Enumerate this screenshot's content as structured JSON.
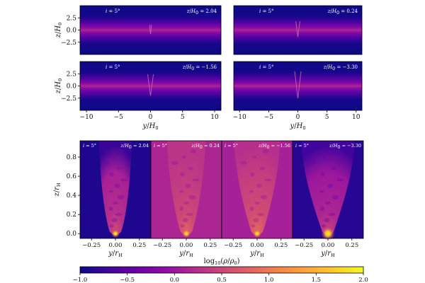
{
  "chart_data": {
    "type": "heatmap",
    "colormap": {
      "name": "plasma",
      "stops": [
        "#0d0887",
        "#41049d",
        "#6a00a8",
        "#8f0da4",
        "#b12a90",
        "#cc4778",
        "#e16462",
        "#f2844b",
        "#fca636",
        "#fcce25",
        "#f0f921"
      ]
    },
    "colorbar": {
      "label": "log10(ρ/ρ0)",
      "label_parts": {
        "prefix": "log",
        "sub": "10",
        "rest": "(ρ/ρ",
        "rest_sub": "0",
        "close": ")"
      },
      "range": [
        -1.0,
        2.0
      ],
      "ticks": [
        -1.0,
        -0.5,
        0.0,
        0.5,
        1.0,
        1.5,
        2.0
      ],
      "tick_labels": [
        "−1.0",
        "−0.5",
        "0.0",
        "0.5",
        "1.0",
        "1.5",
        "2.0"
      ]
    },
    "top_panels": {
      "xlabel": "y/H0",
      "ylabel": "z/H0",
      "xlim": [
        -11,
        11
      ],
      "ylim": [
        -5,
        5
      ],
      "xticks": [
        -10,
        -5,
        0,
        5,
        10
      ],
      "xtick_labels": [
        "−10",
        "−5",
        "0",
        "5",
        "10"
      ],
      "yticks": [
        2.5,
        0.0,
        -2.5
      ],
      "ytick_labels": [
        "2.5",
        "0.0",
        "−2.5"
      ],
      "panels": [
        {
          "inclination_label": "i = 5°",
          "slice_label": "z/H0 = 2.04",
          "slice_value": 2.04,
          "disk_peak_log_density": 0.15
        },
        {
          "inclination_label": "i = 5°",
          "slice_label": "z/H0 = 0.24",
          "slice_value": 0.24,
          "disk_peak_log_density": 0.15
        },
        {
          "inclination_label": "i = 5°",
          "slice_label": "z/H0 = −1.56",
          "slice_value": -1.56,
          "disk_peak_log_density": 0.15
        },
        {
          "inclination_label": "i = 5°",
          "slice_label": "z/H0 = −3.30",
          "slice_value": -3.3,
          "disk_peak_log_density": 0.15
        }
      ]
    },
    "bottom_panels": {
      "xlabel": "y/rH",
      "ylabel": "z/rH",
      "xlim": [
        -0.37,
        0.37
      ],
      "ylim": [
        -0.05,
        0.97
      ],
      "xticks": [
        -0.25,
        0.0,
        0.25
      ],
      "xtick_labels": [
        "−0.25",
        "0.00",
        "0.25"
      ],
      "yticks": [
        0.0,
        0.2,
        0.4,
        0.6,
        0.8
      ],
      "ytick_labels": [
        "0.0",
        "0.2",
        "0.4",
        "0.6",
        "0.8"
      ],
      "panels": [
        {
          "inclination_label": "i = 5°",
          "slice_label": "z/H0 = 2.04",
          "slice_value": 2.04,
          "background_log_density": -0.9,
          "plume_log_density": 0.1
        },
        {
          "inclination_label": "i = 5°",
          "slice_label": "z/H0 = 0.24",
          "slice_value": 0.24,
          "background_log_density": 0.15,
          "plume_log_density": 0.35
        },
        {
          "inclination_label": "i = 5°",
          "slice_label": "z/H0 = −1.56",
          "slice_value": -1.56,
          "background_log_density": 0.1,
          "plume_log_density": 0.4
        },
        {
          "inclination_label": "i = 5°",
          "slice_label": "z/H0 = −3.30",
          "slice_value": -3.3,
          "background_log_density": -0.85,
          "plume_log_density": 0.0
        }
      ]
    }
  }
}
